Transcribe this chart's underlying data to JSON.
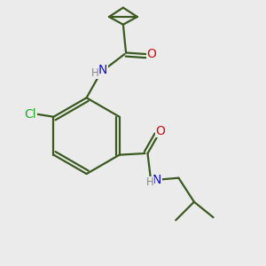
{
  "background_color": "#ebebeb",
  "bond_color": "#3a5a20",
  "bond_width": 1.6,
  "atom_colors": {
    "N": "#1010cc",
    "O": "#cc1010",
    "Cl": "#22aa22",
    "H": "#888888"
  },
  "font_size_atom": 10,
  "font_size_h": 8.5
}
